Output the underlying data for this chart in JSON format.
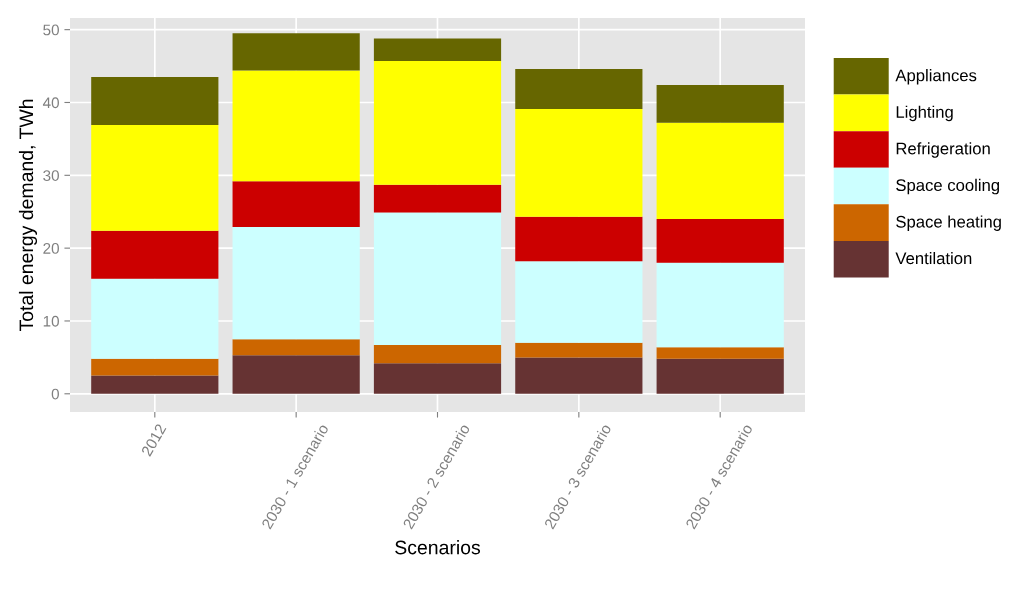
{
  "chart_data": {
    "type": "bar",
    "stacked": true,
    "xlabel": "Scenarios",
    "ylabel": "Total energy demand, TWh",
    "categories": [
      "2012",
      "2030 - 1 scenario",
      "2030 - 2 scenario",
      "2030 - 3 scenario",
      "2030 - 4 scenario"
    ],
    "series": [
      {
        "name": "Ventilation",
        "color": "#663333",
        "values": [
          2.5,
          5.3,
          4.2,
          5.0,
          4.8
        ]
      },
      {
        "name": "Space heating",
        "color": "#cc6600",
        "values": [
          2.3,
          2.2,
          2.5,
          2.0,
          1.6
        ]
      },
      {
        "name": "Space cooling",
        "color": "#ccffff",
        "values": [
          11.0,
          15.4,
          18.2,
          11.2,
          11.6
        ]
      },
      {
        "name": "Refrigeration",
        "color": "#cc0000",
        "values": [
          6.6,
          6.3,
          3.8,
          6.1,
          6.0
        ]
      },
      {
        "name": "Lighting",
        "color": "#ffff00",
        "values": [
          14.5,
          15.2,
          17.0,
          14.8,
          13.2
        ]
      },
      {
        "name": "Appliances",
        "color": "#666600",
        "values": [
          6.6,
          5.1,
          3.1,
          5.5,
          5.2
        ]
      }
    ],
    "ylim": [
      -2.5,
      51.6
    ],
    "yticks": [
      0,
      10,
      20,
      30,
      40,
      50
    ],
    "grid": true,
    "legend": "right"
  }
}
